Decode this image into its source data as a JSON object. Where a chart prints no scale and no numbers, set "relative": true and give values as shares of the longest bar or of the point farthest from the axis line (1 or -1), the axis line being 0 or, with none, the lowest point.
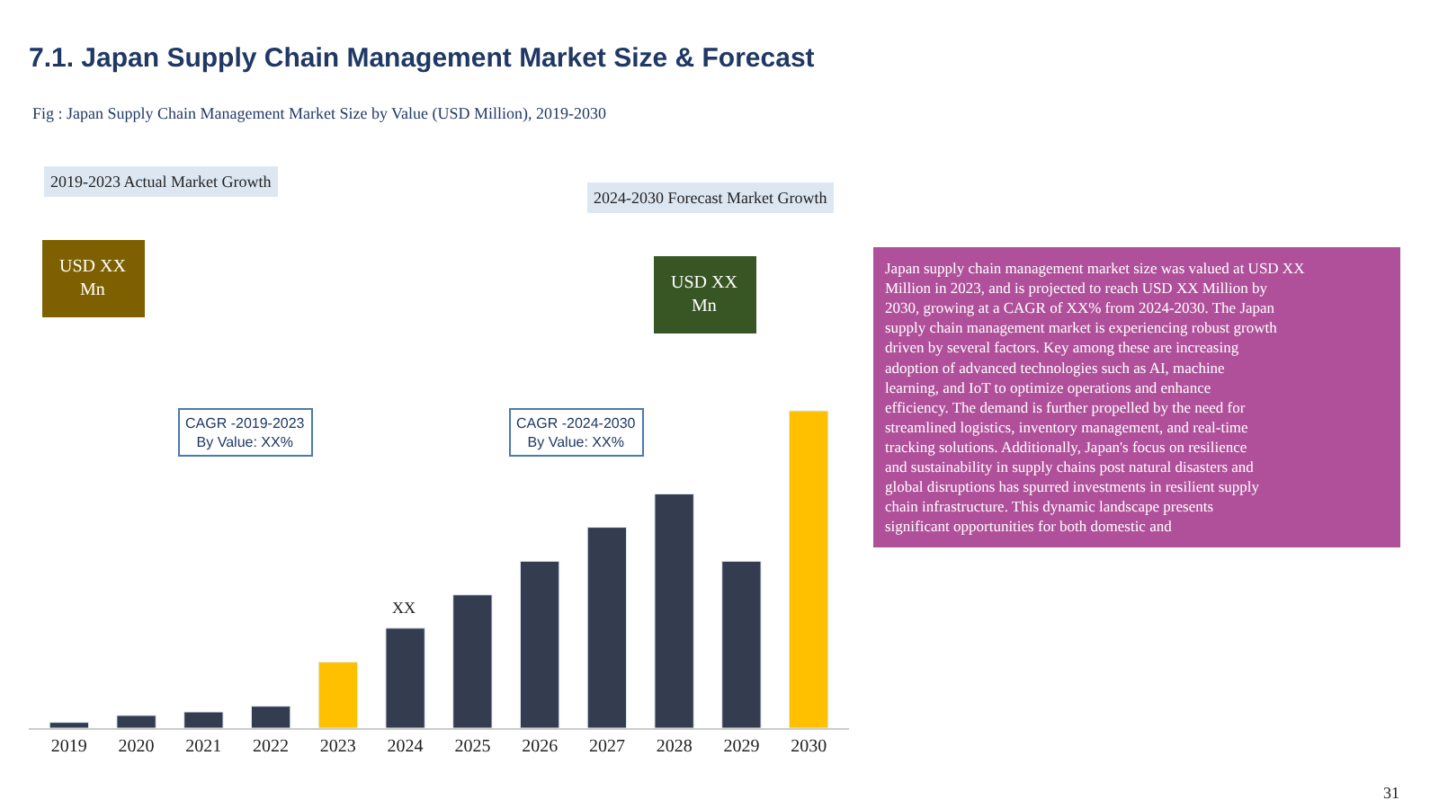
{
  "chart_data": {
    "type": "bar",
    "relative": true,
    "title": "7.1. Japan Supply Chain Management Market Size & Forecast",
    "categories": [
      "2019",
      "2020",
      "2021",
      "2022",
      "2023",
      "2024",
      "2025",
      "2026",
      "2027",
      "2028",
      "2029",
      "2030"
    ],
    "values": [
      0.018,
      0.04,
      0.051,
      0.069,
      0.208,
      0.315,
      0.42,
      0.526,
      0.633,
      0.738,
      0.526,
      1
    ],
    "colors": [
      "#333d4f",
      "#333d4f",
      "#333d4f",
      "#333d4f",
      "#ffc000",
      "#333d4f",
      "#333d4f",
      "#333d4f",
      "#333d4f",
      "#333d4f",
      "#333d4f",
      "#ffc000"
    ],
    "annotations": [
      "Fig : Japan Supply Chain Management Market Size by Value (USD Million), 2019-2030",
      "2019-2023 Actual Market Growth",
      "2024-2030 Forecast Market Growth",
      "USD XX\nMn",
      "USD XX\nMn",
      "CAGR -2019-2023\nBy Value: XX%",
      "CAGR -2024-2030\nBy Value: XX%",
      {
        "text": "XX",
        "x": "2024",
        "y": 0.315
      },
      "Japan supply chain management market size was valued at USD XX Million in 2023, and is projected to reach USD XX Million by 2030, growing at a CAGR of XX% from 2024-2030. The Japan supply chain management market is experiencing robust growth driven by several factors. Key among these are increasing adoption of advanced technologies such as AI, machine learning, and IoT to optimize operations and enhance efficiency. The demand is further propelled by the need for streamlined logistics, inventory management, and real-time tracking solutions. Additionally, Japan's focus on resilience and sustainability in supply chains post natural disasters and global disruptions has spurred investments in resilient supply chain infrastructure. This dynamic landscape presents significant opportunities for both domestic and",
      "31"
    ]
  }
}
